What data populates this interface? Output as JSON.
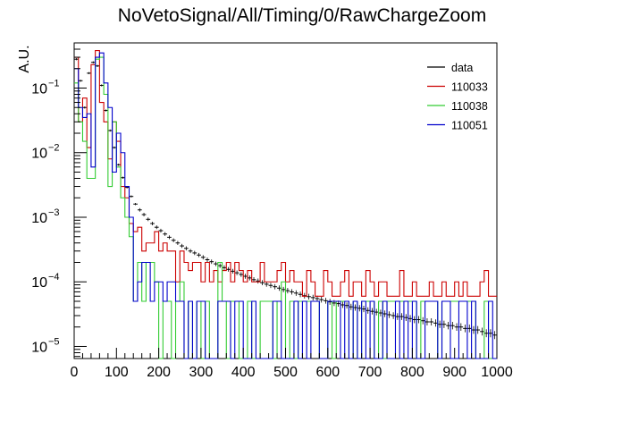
{
  "chart_data": {
    "type": "step-histogram",
    "title": "NoVetoSignal/All/Timing/0/RawChargeZoom",
    "xlabel": "",
    "ylabel": "A.U.",
    "xlim": [
      0,
      1000
    ],
    "ylim": [
      6.5e-06,
      0.5
    ],
    "yscale": "log",
    "grid": false,
    "legend_position": "top-right",
    "bin_width": 10,
    "x_ticks": [
      "0",
      "100",
      "200",
      "300",
      "400",
      "500",
      "600",
      "700",
      "800",
      "900",
      "1000"
    ],
    "y_ticks": [
      {
        "base": "10",
        "exp": "−5",
        "value": 1e-05
      },
      {
        "base": "10",
        "exp": "−4",
        "value": 0.0001
      },
      {
        "base": "10",
        "exp": "−3",
        "value": 0.001
      },
      {
        "base": "10",
        "exp": "−2",
        "value": 0.01
      },
      {
        "base": "10",
        "exp": "−1",
        "value": 0.1
      }
    ],
    "series": [
      {
        "name": "data",
        "color": "#000000",
        "style": "markers",
        "points": [
          [
            5,
            0.28
          ],
          [
            15,
            0.13
          ],
          [
            25,
            0.05
          ],
          [
            35,
            0.17
          ],
          [
            45,
            0.25
          ],
          [
            55,
            0.22
          ],
          [
            65,
            0.11
          ],
          [
            75,
            0.045
          ],
          [
            85,
            0.022
          ],
          [
            95,
            0.012
          ],
          [
            105,
            0.0065
          ],
          [
            115,
            0.0041
          ],
          [
            125,
            0.0029
          ],
          [
            135,
            0.0021
          ],
          [
            145,
            0.0016
          ],
          [
            155,
            0.0013
          ],
          [
            165,
            0.0011
          ],
          [
            175,
            0.00093
          ],
          [
            185,
            0.0008
          ],
          [
            195,
            0.0007
          ],
          [
            205,
            0.00062
          ],
          [
            215,
            0.00055
          ],
          [
            225,
            0.00049
          ],
          [
            235,
            0.00044
          ],
          [
            245,
            0.0004
          ],
          [
            255,
            0.00036
          ],
          [
            265,
            0.00033
          ],
          [
            275,
            0.0003
          ],
          [
            285,
            0.00028
          ],
          [
            295,
            0.00026
          ],
          [
            305,
            0.00024
          ],
          [
            315,
            0.00022
          ],
          [
            325,
            0.000205
          ],
          [
            335,
            0.00019
          ],
          [
            345,
            0.000178
          ],
          [
            355,
            0.000166
          ],
          [
            365,
            0.000156
          ],
          [
            375,
            0.000146
          ],
          [
            385,
            0.000138
          ],
          [
            395,
            0.00013
          ],
          [
            405,
            0.000122
          ],
          [
            415,
            0.000115
          ],
          [
            425,
            0.000108
          ],
          [
            435,
            0.000103
          ],
          [
            445,
            9.7e-05
          ],
          [
            455,
            9.2e-05
          ],
          [
            465,
            8.8e-05
          ],
          [
            475,
            8.4e-05
          ],
          [
            485,
            8e-05
          ],
          [
            495,
            7.6e-05
          ],
          [
            505,
            7.3e-05
          ],
          [
            515,
            7e-05
          ],
          [
            525,
            6.7e-05
          ],
          [
            535,
            6.4e-05
          ],
          [
            545,
            6.1e-05
          ],
          [
            555,
            5.9e-05
          ],
          [
            565,
            5.7e-05
          ],
          [
            575,
            5.5e-05
          ],
          [
            585,
            5.3e-05
          ],
          [
            595,
            5.1e-05
          ],
          [
            605,
            4.9e-05
          ],
          [
            615,
            4.7e-05
          ],
          [
            625,
            4.6e-05
          ],
          [
            635,
            4.4e-05
          ],
          [
            645,
            4.3e-05
          ],
          [
            655,
            4.1e-05
          ],
          [
            665,
            4e-05
          ],
          [
            675,
            3.9e-05
          ],
          [
            685,
            3.8e-05
          ],
          [
            695,
            3.6e-05
          ],
          [
            705,
            3.5e-05
          ],
          [
            715,
            3.4e-05
          ],
          [
            725,
            3.3e-05
          ],
          [
            735,
            3.2e-05
          ],
          [
            745,
            3.1e-05
          ],
          [
            755,
            3e-05
          ],
          [
            765,
            2.9e-05
          ],
          [
            775,
            2.9e-05
          ],
          [
            785,
            2.8e-05
          ],
          [
            795,
            2.7e-05
          ],
          [
            805,
            2.6e-05
          ],
          [
            815,
            2.6e-05
          ],
          [
            825,
            2.5e-05
          ],
          [
            835,
            2.4e-05
          ],
          [
            845,
            2.4e-05
          ],
          [
            855,
            2.3e-05
          ],
          [
            865,
            2.2e-05
          ],
          [
            875,
            2.2e-05
          ],
          [
            885,
            2.1e-05
          ],
          [
            895,
            2.1e-05
          ],
          [
            905,
            2e-05
          ],
          [
            915,
            2e-05
          ],
          [
            925,
            1.9e-05
          ],
          [
            935,
            1.9e-05
          ],
          [
            945,
            1.8e-05
          ],
          [
            955,
            1.8e-05
          ],
          [
            965,
            1.7e-05
          ],
          [
            975,
            1.6e-05
          ],
          [
            985,
            1.6e-05
          ],
          [
            995,
            1.5e-05
          ]
        ]
      },
      {
        "name": "110033",
        "color": "#cc0000",
        "style": "step",
        "values": [
          0.3,
          0.03,
          0.07,
          0.012,
          0.23,
          0.38,
          0.06,
          0.03,
          0.008,
          0.03,
          0.015,
          0.003,
          0.002,
          0.0008,
          0.0006,
          0.0007,
          0.0003,
          0.0004,
          0.0004,
          0.0006,
          0.0003,
          0.0004,
          0.0003,
          0.0003,
          0.0001,
          0.0003,
          0.0002,
          0.00015,
          0.0002,
          0.0002,
          0.0001,
          0.0002,
          0.0001,
          0.00015,
          0.0001,
          0.00015,
          0.0002,
          0.0001,
          0.0002,
          0.00015,
          0.0001,
          0.00015,
          0.0001,
          0.0001,
          0.0002,
          0.0001,
          0.0001,
          0.0001,
          0.00015,
          0.0002,
          0.0001,
          0.00015,
          0.0001,
          0.0001,
          6e-05,
          0.00015,
          0.0001,
          6e-05,
          6e-05,
          0.00015,
          0.0001,
          6e-05,
          6e-05,
          0.0001,
          0.00015,
          6e-05,
          0.0001,
          0.0001,
          6e-05,
          0.00015,
          0.0001,
          6e-05,
          0.0001,
          0.0001,
          6e-05,
          6e-05,
          6e-05,
          0.00015,
          6e-05,
          6e-05,
          0.0001,
          6e-05,
          6e-05,
          6e-05,
          0.0001,
          6e-05,
          6e-05,
          0.0001,
          6e-05,
          6e-05,
          0.0001,
          6e-05,
          0.0001,
          6e-05,
          6e-05,
          6e-05,
          0.0001,
          0.00015,
          6e-05,
          6e-05
        ]
      },
      {
        "name": "110038",
        "color": "#33cc33",
        "style": "step",
        "values": [
          0.12,
          0.03,
          0.015,
          0.004,
          0.004,
          0.28,
          0.3,
          0.08,
          0.003,
          0.03,
          0.006,
          0.002,
          0.001,
          0.0005,
          5e-05,
          0.0002,
          5e-05,
          0.0002,
          0.0002,
          0.0001,
          0,
          5e-05,
          5e-05,
          0,
          5e-05,
          0.0001,
          0,
          5e-05,
          0,
          5e-05,
          0,
          5e-05,
          0,
          0,
          0.0002,
          5e-05,
          0,
          5e-05,
          5e-05,
          0,
          0,
          5e-05,
          0,
          0,
          5e-05,
          5e-05,
          5e-05,
          0,
          5e-05,
          0.0001,
          0,
          5e-05,
          0,
          5e-05,
          5e-05,
          5e-05,
          5e-05,
          5e-05,
          0,
          0,
          5e-05,
          0,
          5e-05,
          5e-05,
          5e-05,
          0,
          5e-05,
          0,
          5e-05,
          5e-05,
          5e-05,
          0,
          5e-05,
          0,
          5e-05,
          5e-05,
          5e-05,
          5e-05,
          5e-05,
          5e-05,
          5e-05,
          0,
          5e-05,
          5e-05,
          5e-05,
          5e-05,
          0,
          5e-05,
          5e-05,
          5e-05,
          5e-05,
          5e-05,
          5e-05,
          5e-05,
          5e-05,
          0,
          0,
          5e-05,
          0,
          0
        ]
      },
      {
        "name": "110051",
        "color": "#0000cc",
        "style": "step",
        "values": [
          0.2,
          0.05,
          0.035,
          0.04,
          0.006,
          0.3,
          0.35,
          0.12,
          0.05,
          0.005,
          0.02,
          0.01,
          0.003,
          0.001,
          5e-05,
          0.0001,
          0.0002,
          0.0002,
          5e-05,
          0.0001,
          0.0001,
          5e-05,
          0.0001,
          0.0001,
          5e-05,
          5e-05,
          0,
          5e-05,
          0,
          5e-05,
          5e-05,
          0,
          0,
          0,
          5e-05,
          5e-05,
          5e-05,
          0,
          5e-05,
          5e-05,
          0,
          0,
          5e-05,
          0,
          0,
          0,
          0,
          5e-05,
          5e-05,
          0,
          0,
          0,
          5e-05,
          0,
          5e-05,
          0,
          5e-05,
          5e-05,
          0,
          0,
          5e-05,
          5e-05,
          5e-05,
          0,
          5e-05,
          0,
          5e-05,
          0,
          5e-05,
          0,
          5e-05,
          0,
          0,
          5e-05,
          0,
          0,
          5e-05,
          0,
          5e-05,
          0,
          5e-05,
          0,
          0,
          5e-05,
          5e-05,
          5e-05,
          0,
          5e-05,
          5e-05,
          0,
          0,
          5e-05,
          5e-05,
          0,
          5e-05,
          0,
          0,
          0,
          5e-05,
          0
        ]
      }
    ]
  }
}
